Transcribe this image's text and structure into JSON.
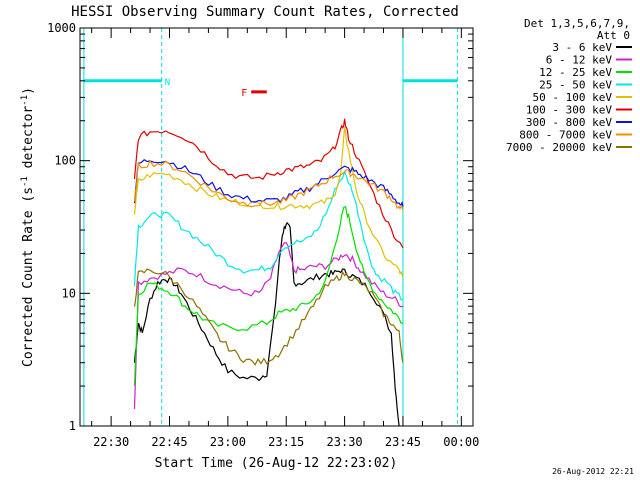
{
  "chart_data": {
    "type": "line",
    "title": "HESSI Observing Summary Count Rates, Corrected",
    "xlabel": "Start Time (26-Aug-12 22:23:02)",
    "ylabel_main": "Corrected Count Rate (s",
    "ylabel_sup1": "-1",
    "ylabel_mid": " detector",
    "ylabel_sup2": "-1",
    "ylabel_end": ")",
    "yscale": "log",
    "ylim": [
      1,
      1000
    ],
    "y_ticks": [
      {
        "value": 1,
        "label": "1"
      },
      {
        "value": 10,
        "label": "10"
      },
      {
        "value": 100,
        "label": "100"
      },
      {
        "value": 1000,
        "label": "1000"
      }
    ],
    "xlim_minutes": [
      -8,
      93
    ],
    "x_ticks": [
      {
        "minute": 0,
        "label": "22:30"
      },
      {
        "minute": 15,
        "label": "22:45"
      },
      {
        "minute": 30,
        "label": "23:00"
      },
      {
        "minute": 45,
        "label": "23:15"
      },
      {
        "minute": 60,
        "label": "23:30"
      },
      {
        "minute": 75,
        "label": "23:45"
      },
      {
        "minute": 90,
        "label": "00:00"
      }
    ],
    "legend_header": [
      "Det 1,3,5,6,7,9,",
      "Att 0"
    ],
    "series": [
      {
        "name": "3 - 6 keV",
        "color": "#000000",
        "values": [
          [
            6,
            3
          ],
          [
            7,
            6
          ],
          [
            8,
            5
          ],
          [
            10,
            9
          ],
          [
            12,
            12
          ],
          [
            14,
            13
          ],
          [
            16,
            12
          ],
          [
            18,
            10
          ],
          [
            21,
            7
          ],
          [
            24,
            5
          ],
          [
            27,
            3.5
          ],
          [
            30,
            2.6
          ],
          [
            34,
            2.3
          ],
          [
            38,
            2.3
          ],
          [
            40,
            2.5
          ],
          [
            42,
            7
          ],
          [
            43,
            15
          ],
          [
            44,
            28
          ],
          [
            45,
            34
          ],
          [
            46,
            30
          ],
          [
            47,
            12
          ],
          [
            49,
            12
          ],
          [
            52,
            13
          ],
          [
            55,
            14
          ],
          [
            57,
            14
          ],
          [
            59,
            15
          ],
          [
            61,
            14
          ],
          [
            63,
            13
          ],
          [
            66,
            11
          ],
          [
            69,
            8
          ],
          [
            72,
            5
          ],
          [
            73,
            2
          ],
          [
            74,
            1
          ]
        ]
      },
      {
        "name": "6 - 12 keV",
        "color": "#d020d0",
        "values": [
          [
            6,
            1.3
          ],
          [
            7,
            12
          ],
          [
            10,
            13
          ],
          [
            14,
            14
          ],
          [
            18,
            15
          ],
          [
            22,
            14
          ],
          [
            26,
            12
          ],
          [
            30,
            11
          ],
          [
            34,
            10
          ],
          [
            38,
            10
          ],
          [
            41,
            13
          ],
          [
            43,
            20
          ],
          [
            45,
            24
          ],
          [
            47,
            15
          ],
          [
            49,
            15
          ],
          [
            52,
            16
          ],
          [
            55,
            16
          ],
          [
            58,
            18
          ],
          [
            60,
            20
          ],
          [
            62,
            18
          ],
          [
            64,
            15
          ],
          [
            67,
            12
          ],
          [
            70,
            10
          ],
          [
            73,
            9
          ],
          [
            75,
            8
          ]
        ]
      },
      {
        "name": "12 - 25 keV",
        "color": "#00e000",
        "values": [
          [
            6,
            2
          ],
          [
            7,
            10
          ],
          [
            10,
            12
          ],
          [
            13,
            11
          ],
          [
            16,
            10
          ],
          [
            19,
            8
          ],
          [
            22,
            7
          ],
          [
            25,
            6
          ],
          [
            30,
            5.5
          ],
          [
            35,
            5.5
          ],
          [
            40,
            6
          ],
          [
            43,
            7
          ],
          [
            46,
            7.5
          ],
          [
            49,
            8
          ],
          [
            52,
            9
          ],
          [
            55,
            12
          ],
          [
            57,
            20
          ],
          [
            59,
            35
          ],
          [
            60,
            45
          ],
          [
            61,
            38
          ],
          [
            63,
            22
          ],
          [
            65,
            14
          ],
          [
            68,
            10
          ],
          [
            71,
            8
          ],
          [
            73,
            7
          ],
          [
            75,
            6
          ]
        ]
      },
      {
        "name": "25 - 50 keV",
        "color": "#00e8e8",
        "values": [
          [
            6,
            12
          ],
          [
            7,
            32
          ],
          [
            9,
            36
          ],
          [
            12,
            40
          ],
          [
            15,
            38
          ],
          [
            18,
            32
          ],
          [
            22,
            26
          ],
          [
            26,
            21
          ],
          [
            30,
            17
          ],
          [
            34,
            15
          ],
          [
            38,
            15
          ],
          [
            41,
            16
          ],
          [
            44,
            22
          ],
          [
            47,
            24
          ],
          [
            50,
            25
          ],
          [
            53,
            30
          ],
          [
            56,
            45
          ],
          [
            58,
            65
          ],
          [
            60,
            80
          ],
          [
            62,
            60
          ],
          [
            64,
            35
          ],
          [
            66,
            20
          ],
          [
            68,
            14
          ],
          [
            71,
            12
          ],
          [
            73,
            10
          ],
          [
            75,
            9
          ]
        ]
      },
      {
        "name": "50 - 100 keV",
        "color": "#e0c000",
        "values": [
          [
            6,
            40
          ],
          [
            7,
            70
          ],
          [
            10,
            78
          ],
          [
            14,
            80
          ],
          [
            18,
            72
          ],
          [
            22,
            62
          ],
          [
            26,
            55
          ],
          [
            30,
            50
          ],
          [
            34,
            48
          ],
          [
            38,
            47
          ],
          [
            42,
            45
          ],
          [
            45,
            46
          ],
          [
            48,
            46
          ],
          [
            51,
            46
          ],
          [
            54,
            48
          ],
          [
            57,
            52
          ],
          [
            59,
            80
          ],
          [
            60,
            170
          ],
          [
            61,
            120
          ],
          [
            63,
            60
          ],
          [
            65,
            40
          ],
          [
            68,
            25
          ],
          [
            71,
            18
          ],
          [
            74,
            15
          ],
          [
            75,
            13
          ]
        ]
      },
      {
        "name": "100 - 300 keV",
        "color": "#e00000",
        "values": [
          [
            6,
            70
          ],
          [
            7,
            150
          ],
          [
            10,
            165
          ],
          [
            14,
            170
          ],
          [
            18,
            155
          ],
          [
            22,
            130
          ],
          [
            26,
            100
          ],
          [
            30,
            80
          ],
          [
            34,
            75
          ],
          [
            38,
            74
          ],
          [
            42,
            80
          ],
          [
            45,
            85
          ],
          [
            48,
            88
          ],
          [
            51,
            92
          ],
          [
            54,
            100
          ],
          [
            57,
            120
          ],
          [
            59,
            165
          ],
          [
            60,
            200
          ],
          [
            61,
            150
          ],
          [
            63,
            110
          ],
          [
            66,
            70
          ],
          [
            69,
            45
          ],
          [
            72,
            30
          ],
          [
            75,
            22
          ]
        ]
      },
      {
        "name": "300 - 800 keV",
        "color": "#1010e0",
        "values": [
          [
            6,
            50
          ],
          [
            7,
            95
          ],
          [
            10,
            102
          ],
          [
            14,
            100
          ],
          [
            18,
            90
          ],
          [
            22,
            78
          ],
          [
            26,
            65
          ],
          [
            30,
            56
          ],
          [
            34,
            52
          ],
          [
            38,
            50
          ],
          [
            42,
            50
          ],
          [
            45,
            52
          ],
          [
            48,
            58
          ],
          [
            51,
            62
          ],
          [
            54,
            70
          ],
          [
            57,
            80
          ],
          [
            60,
            88
          ],
          [
            62,
            85
          ],
          [
            64,
            78
          ],
          [
            67,
            70
          ],
          [
            70,
            62
          ],
          [
            72,
            55
          ],
          [
            74,
            48
          ],
          [
            75,
            45
          ]
        ]
      },
      {
        "name": "800 - 7000 keV",
        "color": "#f09000",
        "values": [
          [
            6,
            48
          ],
          [
            7,
            90
          ],
          [
            10,
            96
          ],
          [
            14,
            94
          ],
          [
            18,
            85
          ],
          [
            22,
            72
          ],
          [
            26,
            60
          ],
          [
            30,
            52
          ],
          [
            34,
            48
          ],
          [
            38,
            47
          ],
          [
            42,
            48
          ],
          [
            45,
            50
          ],
          [
            48,
            55
          ],
          [
            51,
            60
          ],
          [
            54,
            67
          ],
          [
            57,
            76
          ],
          [
            60,
            82
          ],
          [
            62,
            80
          ],
          [
            64,
            74
          ],
          [
            67,
            66
          ],
          [
            70,
            58
          ],
          [
            72,
            52
          ],
          [
            74,
            44
          ],
          [
            75,
            42
          ]
        ]
      },
      {
        "name": "7000 - 20000 keV",
        "color": "#8c7000",
        "values": [
          [
            6,
            8
          ],
          [
            7,
            14
          ],
          [
            10,
            15
          ],
          [
            14,
            14
          ],
          [
            18,
            11
          ],
          [
            22,
            8
          ],
          [
            25,
            6
          ],
          [
            28,
            4.5
          ],
          [
            31,
            3.7
          ],
          [
            34,
            3.2
          ],
          [
            37,
            3
          ],
          [
            40,
            3.1
          ],
          [
            43,
            3.5
          ],
          [
            46,
            4.5
          ],
          [
            49,
            6
          ],
          [
            52,
            8
          ],
          [
            55,
            11
          ],
          [
            58,
            13
          ],
          [
            60,
            14
          ],
          [
            62,
            13
          ],
          [
            64,
            12
          ],
          [
            67,
            10
          ],
          [
            70,
            7
          ],
          [
            72,
            6
          ],
          [
            74,
            5
          ],
          [
            75,
            3
          ]
        ]
      }
    ],
    "attenuator_markers": [
      {
        "start": -7,
        "end": 13,
        "label": "N",
        "color": "#00e0e0"
      },
      {
        "start": 75,
        "end": 89,
        "label": "",
        "color": "#00e0e0"
      }
    ],
    "flare_marker": {
      "label": "F",
      "start": 36,
      "end": 40,
      "color": "#e00000"
    },
    "footer_timestamp": "26-Aug-2012 22:21"
  }
}
